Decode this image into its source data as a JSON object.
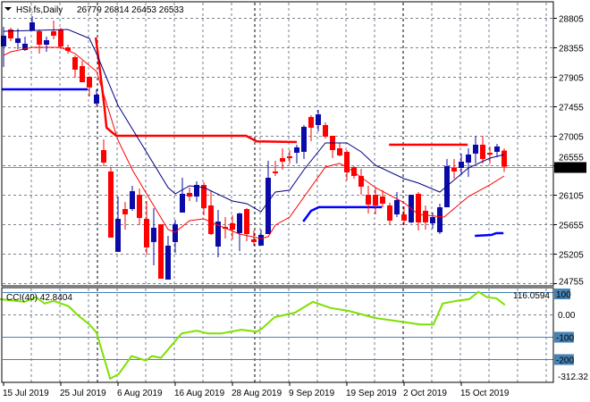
{
  "header": {
    "symbol": "HSI.fs,Daily",
    "ohlc": "26779 26814 26453 26533"
  },
  "cci_label": "CCI(40) 42.8404",
  "colors": {
    "bull": "#0A0AA8",
    "bear": "#FF0000",
    "ma_slow": "#000080",
    "ma_fast": "#FF0000",
    "level_blue": "#0000FF",
    "cci": "#7FE000",
    "cci_levels": "#4682B4",
    "grid": "#7A8290"
  },
  "chart_data": [
    {
      "type": "candlestick",
      "title": "HSI.fs,Daily",
      "price_ticks": [
        "28805",
        "28355",
        "27905",
        "27455",
        "27005",
        "26555",
        "26105",
        "25655",
        "25205",
        "24755"
      ],
      "price_tick_values": [
        28805,
        28355,
        27905,
        27455,
        27005,
        26555,
        26105,
        25655,
        25205,
        24755
      ],
      "ylim": [
        24755,
        29050
      ],
      "current_price": "26533",
      "x_tick_labels": [
        "15 Jul 2019",
        "25 Jul 2019",
        "6 Aug 2019",
        "16 Aug 2019",
        "28 Aug 2019",
        "9 Sep 2019",
        "19 Sep 2019",
        "2 Oct 2019",
        "15 Oct 2019"
      ],
      "x_tick_index": [
        0,
        8,
        16,
        24,
        32,
        40,
        48,
        56,
        64
      ],
      "month_separators": [
        13.1,
        35.1,
        55.9
      ],
      "candles_ohlc": [
        [
          28369,
          28669,
          28055,
          28533
        ],
        [
          28628,
          28655,
          28451,
          28492
        ],
        [
          28423,
          28642,
          28328,
          28492
        ],
        [
          28314,
          28519,
          28301,
          28410
        ],
        [
          28614,
          28833,
          28614,
          28737
        ],
        [
          28601,
          28628,
          28260,
          28396
        ],
        [
          28396,
          28519,
          28287,
          28464
        ],
        [
          28601,
          28764,
          28478,
          28533
        ],
        [
          28628,
          28655,
          28328,
          28369
        ],
        [
          28355,
          28396,
          28260,
          28301
        ],
        [
          28205,
          28233,
          27892,
          28014
        ],
        [
          28069,
          28151,
          27823,
          27823
        ],
        [
          27905,
          27919,
          27605,
          27742
        ],
        [
          27496,
          27714,
          27469,
          27633
        ],
        [
          26787,
          26951,
          26542,
          26596
        ],
        [
          26460,
          26528,
          25451,
          25451
        ],
        [
          25233,
          26078,
          25233,
          25737
        ],
        [
          25887,
          25996,
          25573,
          25805
        ],
        [
          25887,
          26242,
          25860,
          26160
        ],
        [
          26105,
          26201,
          25642,
          25751
        ],
        [
          25737,
          26010,
          25192,
          25301
        ],
        [
          25383,
          25901,
          25028,
          25601
        ],
        [
          25655,
          25655,
          24823,
          24823
        ],
        [
          24810,
          25478,
          24810,
          25328
        ],
        [
          25383,
          25724,
          25219,
          25655
        ],
        [
          25833,
          26364,
          25833,
          26119
        ],
        [
          26133,
          26215,
          26010,
          26078
        ],
        [
          26078,
          26310,
          25996,
          26255
        ],
        [
          26255,
          26296,
          25792,
          25901
        ],
        [
          25942,
          26174,
          25492,
          25505
        ],
        [
          25314,
          25874,
          25151,
          25696
        ],
        [
          25614,
          25764,
          25437,
          25587
        ],
        [
          25669,
          25792,
          25424,
          25573
        ],
        [
          25519,
          25833,
          25246,
          25819
        ],
        [
          25887,
          25901,
          25396,
          25505
        ],
        [
          25424,
          25560,
          25328,
          25383
        ],
        [
          25328,
          25573,
          25328,
          25492
        ],
        [
          25505,
          26623,
          25505,
          26364
        ],
        [
          26460,
          26623,
          26392,
          26433
        ],
        [
          26664,
          26814,
          26487,
          26610
        ],
        [
          26692,
          26787,
          26583,
          26664
        ],
        [
          26746,
          26869,
          26583,
          26828
        ],
        [
          26760,
          27169,
          26651,
          27142
        ],
        [
          27292,
          27319,
          26924,
          27128
        ],
        [
          27169,
          27401,
          27074,
          27333
        ],
        [
          27169,
          27210,
          26964,
          26992
        ],
        [
          27005,
          27005,
          26664,
          26787
        ],
        [
          26814,
          26896,
          26692,
          26705
        ],
        [
          26760,
          26787,
          26323,
          26446
        ],
        [
          26528,
          26542,
          26351,
          26392
        ],
        [
          26392,
          26501,
          26105,
          26228
        ],
        [
          26105,
          26242,
          25819,
          25955
        ],
        [
          26105,
          26215,
          25805,
          25942
        ],
        [
          26078,
          26174,
          25914,
          25969
        ],
        [
          25942,
          25983,
          25655,
          25710
        ],
        [
          25805,
          26146,
          25764,
          26024
        ],
        [
          25805,
          25928,
          25642,
          25710
        ],
        [
          25683,
          26105,
          25669,
          26105
        ],
        [
          26119,
          26146,
          25560,
          25683
        ],
        [
          25860,
          25942,
          25573,
          25683
        ],
        [
          25669,
          25833,
          25587,
          25764
        ],
        [
          25533,
          25969,
          25505,
          25914
        ],
        [
          25914,
          26651,
          25914,
          26542
        ],
        [
          26514,
          26651,
          26351,
          26460
        ],
        [
          26514,
          26733,
          26405,
          26610
        ],
        [
          26596,
          26814,
          26378,
          26719
        ],
        [
          26733,
          27005,
          26583,
          26869
        ],
        [
          26869,
          27005,
          26583,
          26651
        ],
        [
          26746,
          26842,
          26583,
          26719
        ],
        [
          26760,
          26883,
          26678,
          26842
        ],
        [
          26779,
          26814,
          26453,
          26533
        ]
      ],
      "ma_slow": [
        [
          0,
          28601
        ],
        [
          9,
          28628
        ],
        [
          12,
          28492
        ],
        [
          13,
          28260
        ],
        [
          16,
          27469
        ],
        [
          23,
          26215
        ],
        [
          24,
          26119
        ],
        [
          26,
          26242
        ],
        [
          28,
          26215
        ],
        [
          32,
          26010
        ],
        [
          34,
          25969
        ],
        [
          36,
          25846
        ],
        [
          38,
          26146
        ],
        [
          40,
          26174
        ],
        [
          42,
          26487
        ],
        [
          45,
          26896
        ],
        [
          48,
          26896
        ],
        [
          50,
          26760
        ],
        [
          52,
          26555
        ],
        [
          56,
          26351
        ],
        [
          58,
          26283
        ],
        [
          61,
          26146
        ],
        [
          65,
          26514
        ],
        [
          68,
          26664
        ],
        [
          70,
          26719
        ]
      ],
      "ma_fast": [
        [
          0,
          28233
        ],
        [
          1,
          28287
        ],
        [
          4,
          28355
        ],
        [
          8,
          28355
        ],
        [
          10,
          28260
        ],
        [
          13,
          27987
        ],
        [
          16,
          26937
        ],
        [
          18,
          26487
        ],
        [
          20,
          26119
        ],
        [
          23,
          25574
        ],
        [
          24,
          25533
        ],
        [
          26,
          25710
        ],
        [
          28,
          25737
        ],
        [
          30,
          25642
        ],
        [
          33,
          25505
        ],
        [
          36,
          25437
        ],
        [
          37,
          25465
        ],
        [
          38,
          25642
        ],
        [
          40,
          25764
        ],
        [
          45,
          26528
        ],
        [
          47,
          26583
        ],
        [
          48,
          26528
        ],
        [
          52,
          26214
        ],
        [
          56,
          25983
        ],
        [
          58,
          25805
        ],
        [
          61.6,
          25764
        ],
        [
          65,
          26078
        ],
        [
          68,
          26256
        ],
        [
          70,
          26392
        ]
      ],
      "level_red": [
        [
          [
            12.9,
            28505
          ],
          [
            13.6,
            27900
          ],
          [
            14.1,
            27442
          ],
          [
            14.4,
            27128
          ],
          [
            15.75,
            27005
          ],
          [
            33.9,
            27005
          ],
          [
            35.4,
            26920
          ],
          [
            41,
            26910
          ]
        ],
        [
          [
            53.9,
            26869
          ],
          [
            64.9,
            26869
          ]
        ]
      ],
      "level_blue": [
        [
          [
            -0.2,
            27714
          ],
          [
            11.75,
            27714
          ]
        ],
        [
          [
            41.9,
            25696
          ],
          [
            43,
            25860
          ],
          [
            44.1,
            25915
          ],
          [
            52.9,
            25915
          ]
        ],
        [
          [
            65.9,
            25478
          ],
          [
            68.2,
            25492
          ],
          [
            68.9,
            25519
          ],
          [
            69.9,
            25519
          ]
        ]
      ]
    },
    {
      "type": "line",
      "title": "CCI(40) 42.8404",
      "level_labels": [
        "100",
        "-100",
        "-200"
      ],
      "level_values": [
        100,
        -100,
        -200
      ],
      "axis_labels": [
        "116.0594",
        "0.00",
        "-312.32"
      ],
      "axis_values": [
        116,
        0,
        -312
      ],
      "ylim": [
        -320,
        120
      ],
      "points": [
        [
          -0.5,
          69
        ],
        [
          2.9,
          57
        ],
        [
          4.5,
          78
        ],
        [
          5.75,
          49
        ],
        [
          7,
          61
        ],
        [
          9.1,
          37
        ],
        [
          10.4,
          -4
        ],
        [
          12,
          -45
        ],
        [
          13,
          -82
        ],
        [
          14.9,
          -290
        ],
        [
          16.1,
          -269
        ],
        [
          17.9,
          -188
        ],
        [
          19.9,
          -208
        ],
        [
          20.75,
          -188
        ],
        [
          22,
          -196
        ],
        [
          24.9,
          -86
        ],
        [
          27,
          -73
        ],
        [
          28.6,
          -86
        ],
        [
          30.4,
          -86
        ],
        [
          33.25,
          -69
        ],
        [
          35.4,
          -78
        ],
        [
          36.1,
          -65
        ],
        [
          37.9,
          -12
        ],
        [
          40.75,
          8
        ],
        [
          43.25,
          57
        ],
        [
          45.75,
          29
        ],
        [
          48.25,
          16
        ],
        [
          52,
          -16
        ],
        [
          55.75,
          -33
        ],
        [
          58.25,
          -45
        ],
        [
          60.1,
          -45
        ],
        [
          61.4,
          49
        ],
        [
          63.25,
          61
        ],
        [
          65.1,
          69
        ],
        [
          66.4,
          102
        ],
        [
          67.6,
          78
        ],
        [
          68.9,
          73
        ],
        [
          70.1,
          43
        ]
      ]
    }
  ]
}
